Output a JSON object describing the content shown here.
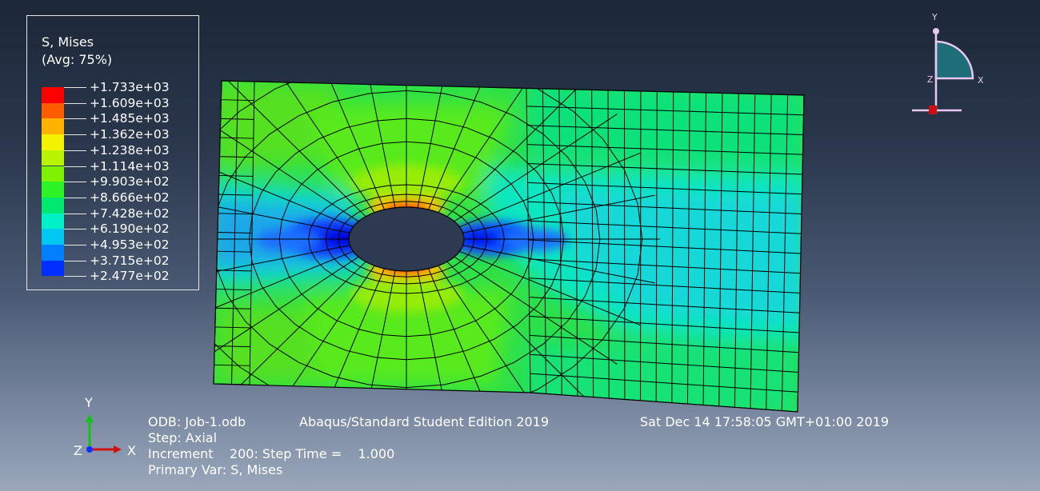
{
  "legend": {
    "title_line1": "S, Mises",
    "title_line2": "(Avg: 75%)",
    "entries": [
      {
        "label": "+1.733e+03",
        "color": "#ff0000"
      },
      {
        "label": "+1.609e+03",
        "color": "#ff5c00"
      },
      {
        "label": "+1.485e+03",
        "color": "#ffb200"
      },
      {
        "label": "+1.362e+03",
        "color": "#f4f200"
      },
      {
        "label": "+1.238e+03",
        "color": "#b8f300"
      },
      {
        "label": "+1.114e+03",
        "color": "#7ef200"
      },
      {
        "label": "+9.903e+02",
        "color": "#2df226"
      },
      {
        "label": "+8.666e+02",
        "color": "#00e870"
      },
      {
        "label": "+7.428e+02",
        "color": "#00f0c8"
      },
      {
        "label": "+6.190e+02",
        "color": "#00c8f0"
      },
      {
        "label": "+4.953e+02",
        "color": "#0080ff"
      },
      {
        "label": "+3.715e+02",
        "color": "#0030ff"
      },
      {
        "label": "+2.477e+02",
        "color": "#0000e6"
      }
    ]
  },
  "info": {
    "odb": "ODB: Job-1.odb",
    "edition": "Abaqus/Standard Student Edition 2019",
    "datetime": "Sat Dec 14 17:58:05 GMT+01:00 2019",
    "step": "Step: Axial",
    "increment": "Increment    200: Step Time =    1.000",
    "primary_var": "Primary Var: S, Mises"
  },
  "triad": {
    "x_label": "X",
    "y_label": "Y",
    "z_label": "Z"
  },
  "view_triad": {
    "x_label": "X",
    "y_label": "Y",
    "z_label": "Z"
  },
  "colors": {
    "background_top": "#1c2738",
    "background_bottom": "#9aa7bb",
    "hole": "#2d3a4f",
    "mesh_lines": "#000000"
  }
}
